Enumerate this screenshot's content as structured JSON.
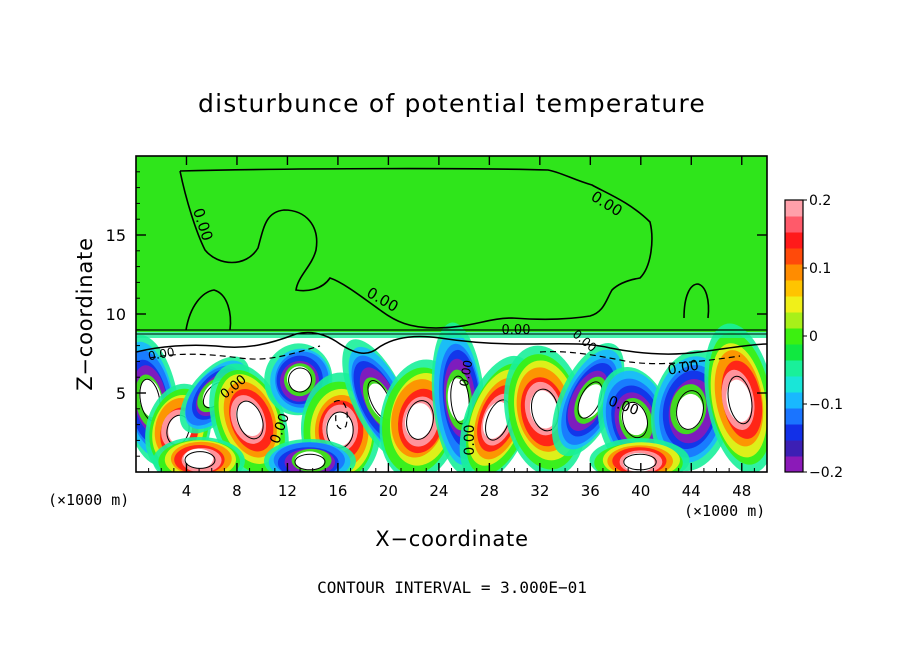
{
  "chart_data": {
    "type": "heatmap",
    "title": "disturbunce of potential temperature",
    "xlabel": "X−coordinate",
    "ylabel": "Z−coordinate",
    "x_unit_label": "(×1000 m)",
    "y_unit_label": "(×1000 m)",
    "footer": "CONTOUR INTERVAL = 3.000E−01",
    "xlim": [
      0,
      50
    ],
    "ylim": [
      0,
      20
    ],
    "x_ticks": [
      4,
      8,
      12,
      16,
      20,
      24,
      28,
      32,
      36,
      40,
      44,
      48
    ],
    "x_tick_labels": [
      "4",
      "8",
      "12",
      "16",
      "20",
      "24",
      "28",
      "32",
      "36",
      "40",
      "44",
      "48"
    ],
    "y_ticks": [
      5,
      10,
      15
    ],
    "y_tick_labels": [
      "5",
      "10",
      "15"
    ],
    "colorbar": {
      "range": [
        -0.2,
        0.2
      ],
      "tick_values": [
        0.2,
        0.1,
        0,
        -0.1,
        -0.2
      ],
      "tick_labels": [
        "0.2",
        "0.1",
        "0",
        "−0.1",
        "−0.2"
      ],
      "colors": [
        "#8b1ab8",
        "#3c1fb4",
        "#1230e8",
        "#1a74ff",
        "#19b8ff",
        "#19e6d8",
        "#19f09a",
        "#10e840",
        "#3cf010",
        "#a8f019",
        "#f0f019",
        "#ffc400",
        "#ff8c00",
        "#ff4a0a",
        "#ff1a1a",
        "#ff5a6a",
        "#ffa0aa"
      ]
    },
    "contour_labels": [
      "0.00",
      "0.00",
      "0.00",
      "0.00",
      "0.00",
      "0.00",
      "0.00",
      "0.00",
      "0.00",
      "0.00",
      "0.00",
      "0.00"
    ],
    "background_value": 0.0
  }
}
